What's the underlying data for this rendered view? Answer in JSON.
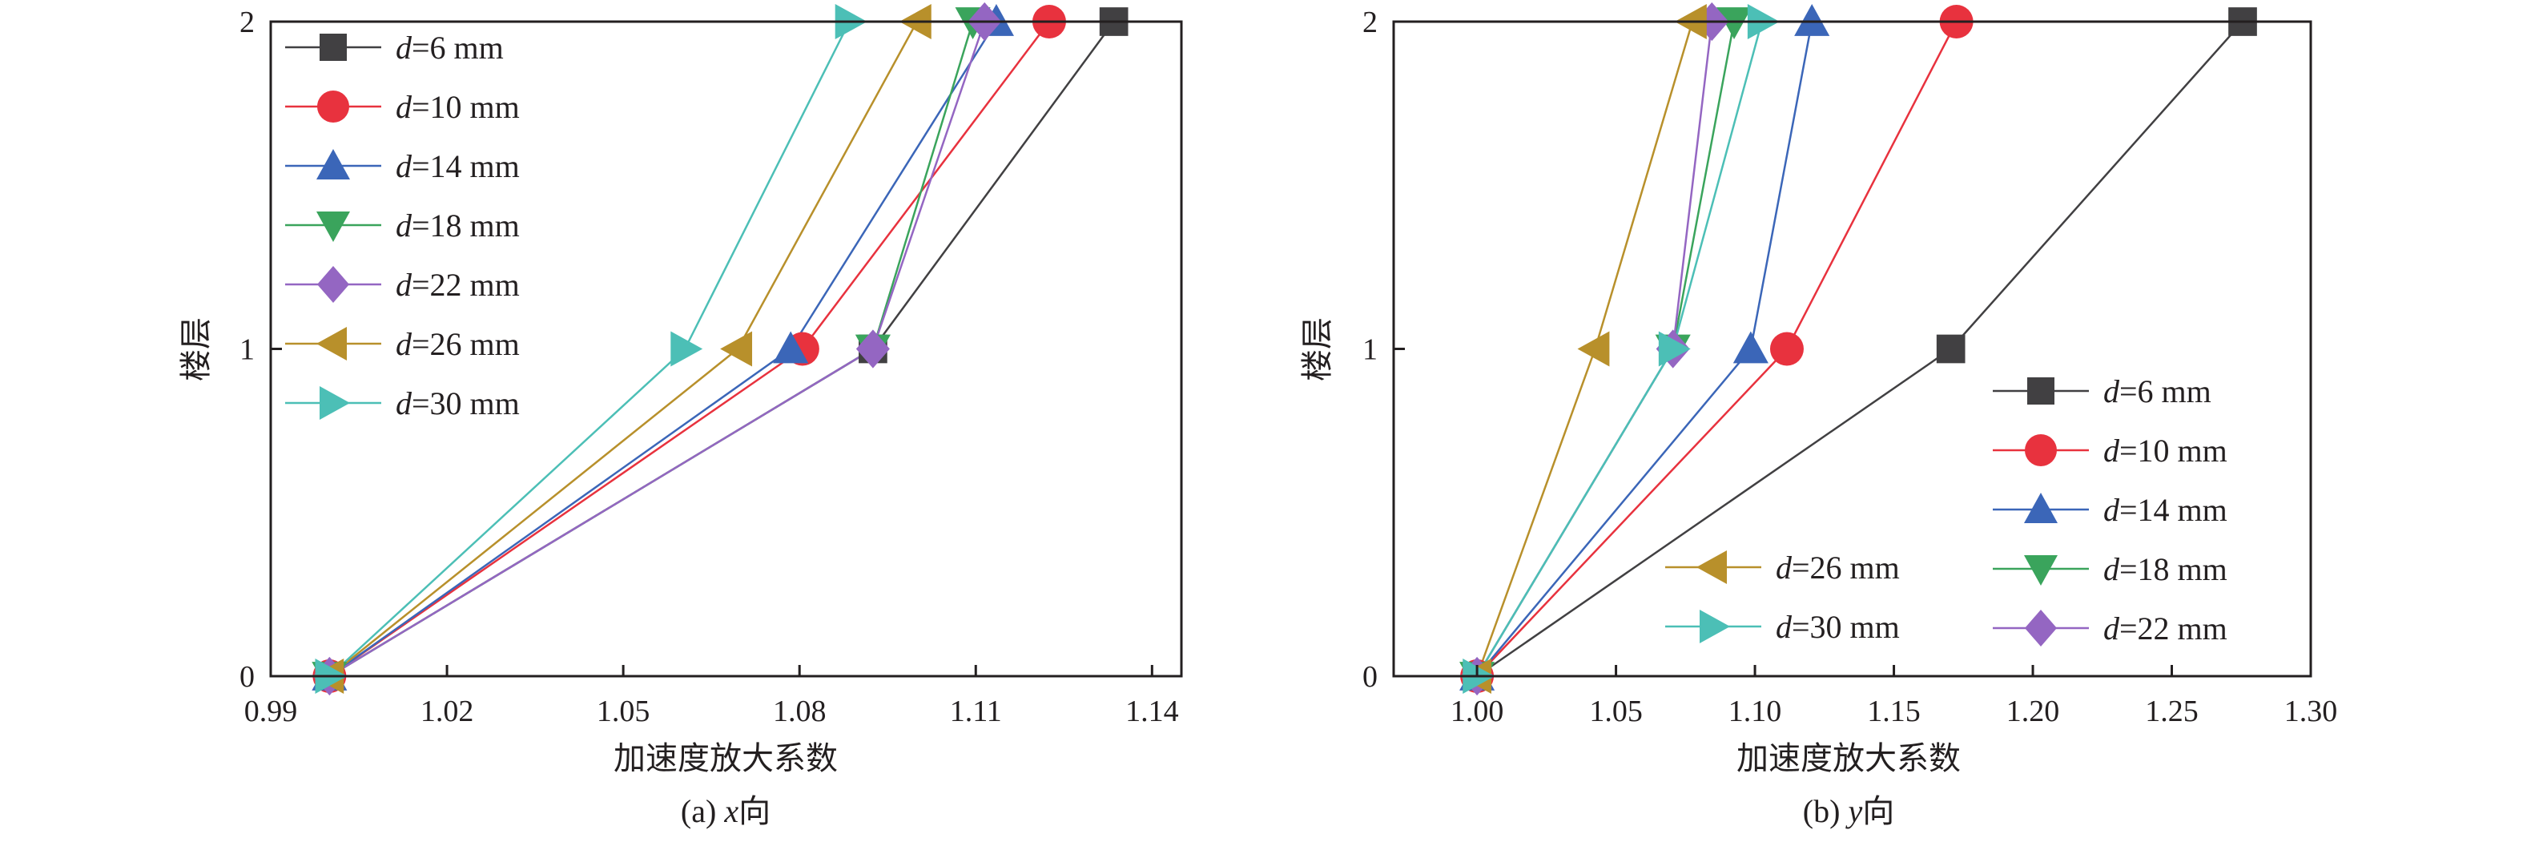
{
  "chart_data": [
    {
      "type": "line",
      "caption": "(a) x向",
      "caption_prefix": "(a) ",
      "caption_var": "x",
      "caption_suffix": "向",
      "xlabel": "加速度放大系数",
      "ylabel": "楼层",
      "xlim": [
        0.99,
        1.145
      ],
      "ylim": [
        0,
        2
      ],
      "xticks": [
        0.99,
        1.02,
        1.05,
        1.08,
        1.11,
        1.14
      ],
      "xtick_labels": [
        "0.99",
        "1.02",
        "1.05",
        "1.08",
        "1.11",
        "1.14"
      ],
      "yticks": [
        0,
        1,
        2
      ],
      "ytick_labels": [
        "0",
        "1",
        "2"
      ],
      "legend_position": "top-left",
      "series": [
        {
          "name": "d=6 mm",
          "name_var": "d",
          "name_rest": "=6 mm",
          "marker": "square",
          "color": "#414042",
          "x": [
            1.0,
            1.0925,
            1.1335
          ],
          "y": [
            0,
            1,
            2
          ]
        },
        {
          "name": "d=10 mm",
          "name_var": "d",
          "name_rest": "=10 mm",
          "marker": "circle",
          "color": "#e8323e",
          "x": [
            1.0,
            1.0805,
            1.1225
          ],
          "y": [
            0,
            1,
            2
          ]
        },
        {
          "name": "d=14 mm",
          "name_var": "d",
          "name_rest": "=14 mm",
          "marker": "triangle-up",
          "color": "#3b66b8",
          "x": [
            1.0,
            1.0785,
            1.1135
          ],
          "y": [
            0,
            1,
            2
          ]
        },
        {
          "name": "d=18 mm",
          "name_var": "d",
          "name_rest": "=18 mm",
          "marker": "triangle-down",
          "color": "#3aa45c",
          "x": [
            1.0,
            1.0925,
            1.1095
          ],
          "y": [
            0,
            1,
            2
          ]
        },
        {
          "name": "d=22 mm",
          "name_var": "d",
          "name_rest": "=22 mm",
          "marker": "diamond",
          "color": "#9466c2",
          "x": [
            1.0,
            1.0925,
            1.1115
          ],
          "y": [
            0,
            1,
            2
          ]
        },
        {
          "name": "d=26 mm",
          "name_var": "d",
          "name_rest": "=26 mm",
          "marker": "triangle-left",
          "color": "#b8902b",
          "x": [
            1.0,
            1.0695,
            1.1
          ],
          "y": [
            0,
            1,
            2
          ]
        },
        {
          "name": "d=30 mm",
          "name_var": "d",
          "name_rest": "=30 mm",
          "marker": "triangle-right",
          "color": "#4cbfb6",
          "x": [
            1.0,
            1.0605,
            1.0885
          ],
          "y": [
            0,
            1,
            2
          ]
        }
      ]
    },
    {
      "type": "line",
      "caption": "(b) y向",
      "caption_prefix": "(b) ",
      "caption_var": "y",
      "caption_suffix": "向",
      "xlabel": "加速度放大系数",
      "ylabel": "楼层",
      "xlim": [
        0.97,
        1.3
      ],
      "ylim": [
        0,
        2
      ],
      "xticks": [
        1.0,
        1.05,
        1.1,
        1.15,
        1.2,
        1.25,
        1.3
      ],
      "xtick_labels": [
        "1.00",
        "1.05",
        "1.10",
        "1.15",
        "1.20",
        "1.25",
        "1.30"
      ],
      "yticks": [
        0,
        1,
        2
      ],
      "ytick_labels": [
        "0",
        "1",
        "2"
      ],
      "legend_position": "bottom-right",
      "series": [
        {
          "name": "d=6 mm",
          "name_var": "d",
          "name_rest": "=6 mm",
          "marker": "square",
          "color": "#414042",
          "x": [
            1.0,
            1.1705,
            1.2755
          ],
          "y": [
            0,
            1,
            2
          ]
        },
        {
          "name": "d=10 mm",
          "name_var": "d",
          "name_rest": "=10 mm",
          "marker": "circle",
          "color": "#e8323e",
          "x": [
            1.0,
            1.1115,
            1.1725
          ],
          "y": [
            0,
            1,
            2
          ]
        },
        {
          "name": "d=14 mm",
          "name_var": "d",
          "name_rest": "=14 mm",
          "marker": "triangle-up",
          "color": "#3b66b8",
          "x": [
            1.0,
            1.0985,
            1.1205
          ],
          "y": [
            0,
            1,
            2
          ]
        },
        {
          "name": "d=18 mm",
          "name_var": "d",
          "name_rest": "=18 mm",
          "marker": "triangle-down",
          "color": "#3aa45c",
          "x": [
            1.0,
            1.0705,
            1.0925
          ],
          "y": [
            0,
            1,
            2
          ]
        },
        {
          "name": "d=22 mm",
          "name_var": "d",
          "name_rest": "=22 mm",
          "marker": "diamond",
          "color": "#9466c2",
          "x": [
            1.0,
            1.0705,
            1.0845
          ],
          "y": [
            0,
            1,
            2
          ]
        },
        {
          "name": "d=26 mm",
          "name_var": "d",
          "name_rest": "=26 mm",
          "marker": "triangle-left",
          "color": "#b8902b",
          "x": [
            1.0,
            1.0425,
            1.0775
          ],
          "y": [
            0,
            1,
            2
          ]
        },
        {
          "name": "d=30 mm",
          "name_var": "d",
          "name_rest": "=30 mm",
          "marker": "triangle-right",
          "color": "#4cbfb6",
          "x": [
            1.0,
            1.0705,
            1.1025
          ],
          "y": [
            0,
            1,
            2
          ]
        }
      ],
      "legend_groups": [
        {
          "series": [
            5,
            6
          ]
        },
        {
          "series": [
            0,
            1,
            2,
            3,
            4
          ]
        }
      ]
    }
  ]
}
